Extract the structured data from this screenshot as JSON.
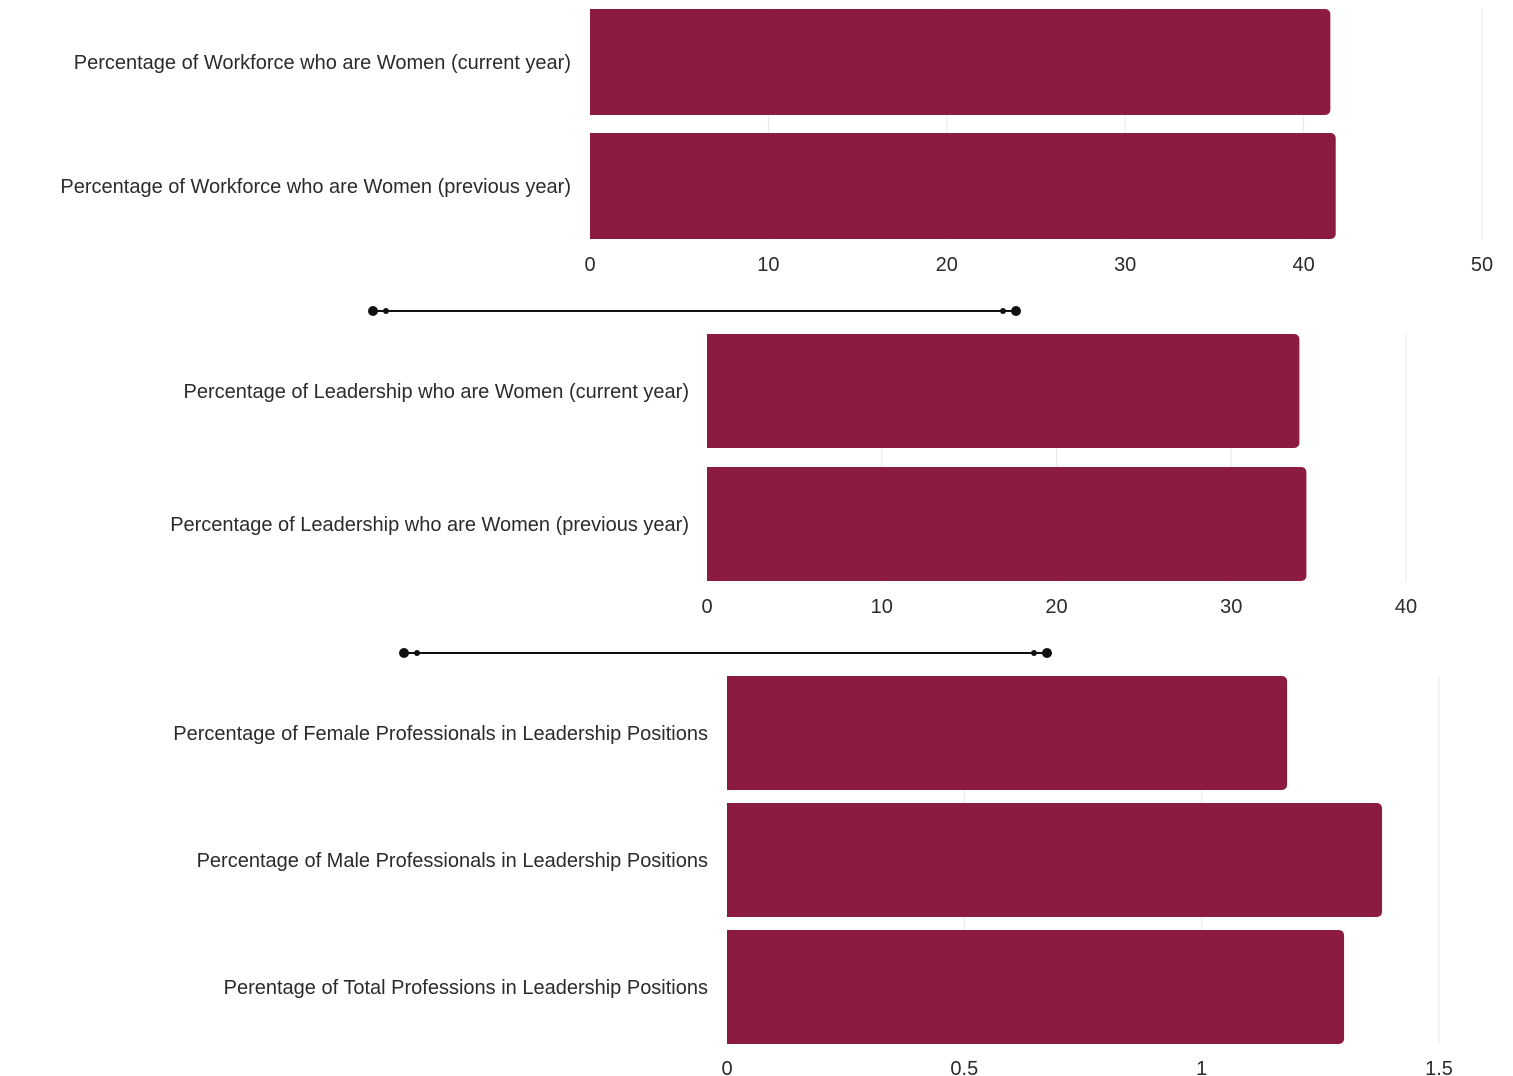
{
  "chart_data": [
    {
      "type": "bar",
      "orientation": "horizontal",
      "categories": [
        "Percentage of Workforce who are Women (current year)",
        "Percentage of Workforce who are Women (previous year)"
      ],
      "values": [
        41.5,
        41.8
      ],
      "xlim": [
        0,
        50
      ],
      "ticks": [
        0,
        10,
        20,
        30,
        40,
        50
      ],
      "tick_labels": [
        "0",
        "10",
        "20",
        "30",
        "40",
        "50"
      ],
      "grid": true,
      "bar_color": "#8B1C40"
    },
    {
      "type": "bar",
      "orientation": "horizontal",
      "categories": [
        "Percentage of Leadership who are Women (current year)",
        "Percentage of Leadership who are Women (previous year)"
      ],
      "values": [
        33.9,
        34.3
      ],
      "xlim": [
        0,
        40
      ],
      "ticks": [
        0,
        10,
        20,
        30,
        40
      ],
      "tick_labels": [
        "0",
        "10",
        "20",
        "30",
        "40"
      ],
      "grid": true,
      "bar_color": "#8B1C40"
    },
    {
      "type": "bar",
      "orientation": "horizontal",
      "categories": [
        "Percentage of Female Professionals in Leadership Positions",
        "Percentage of Male Professionals in Leadership Positions",
        "Perentage of Total Professions in Leadership Positions"
      ],
      "values": [
        1.18,
        1.38,
        1.3
      ],
      "xlim": [
        0,
        1.5
      ],
      "ticks": [
        0,
        0.5,
        1,
        1.5
      ],
      "tick_labels": [
        "0",
        "0.5",
        "1",
        "1.5"
      ],
      "grid": true,
      "bar_color": "#8B1C40"
    }
  ],
  "colors": {
    "bar": "#8B1C40",
    "grid": "#e8e8e8",
    "text": "#2b2b2b",
    "connector": "#111111"
  }
}
